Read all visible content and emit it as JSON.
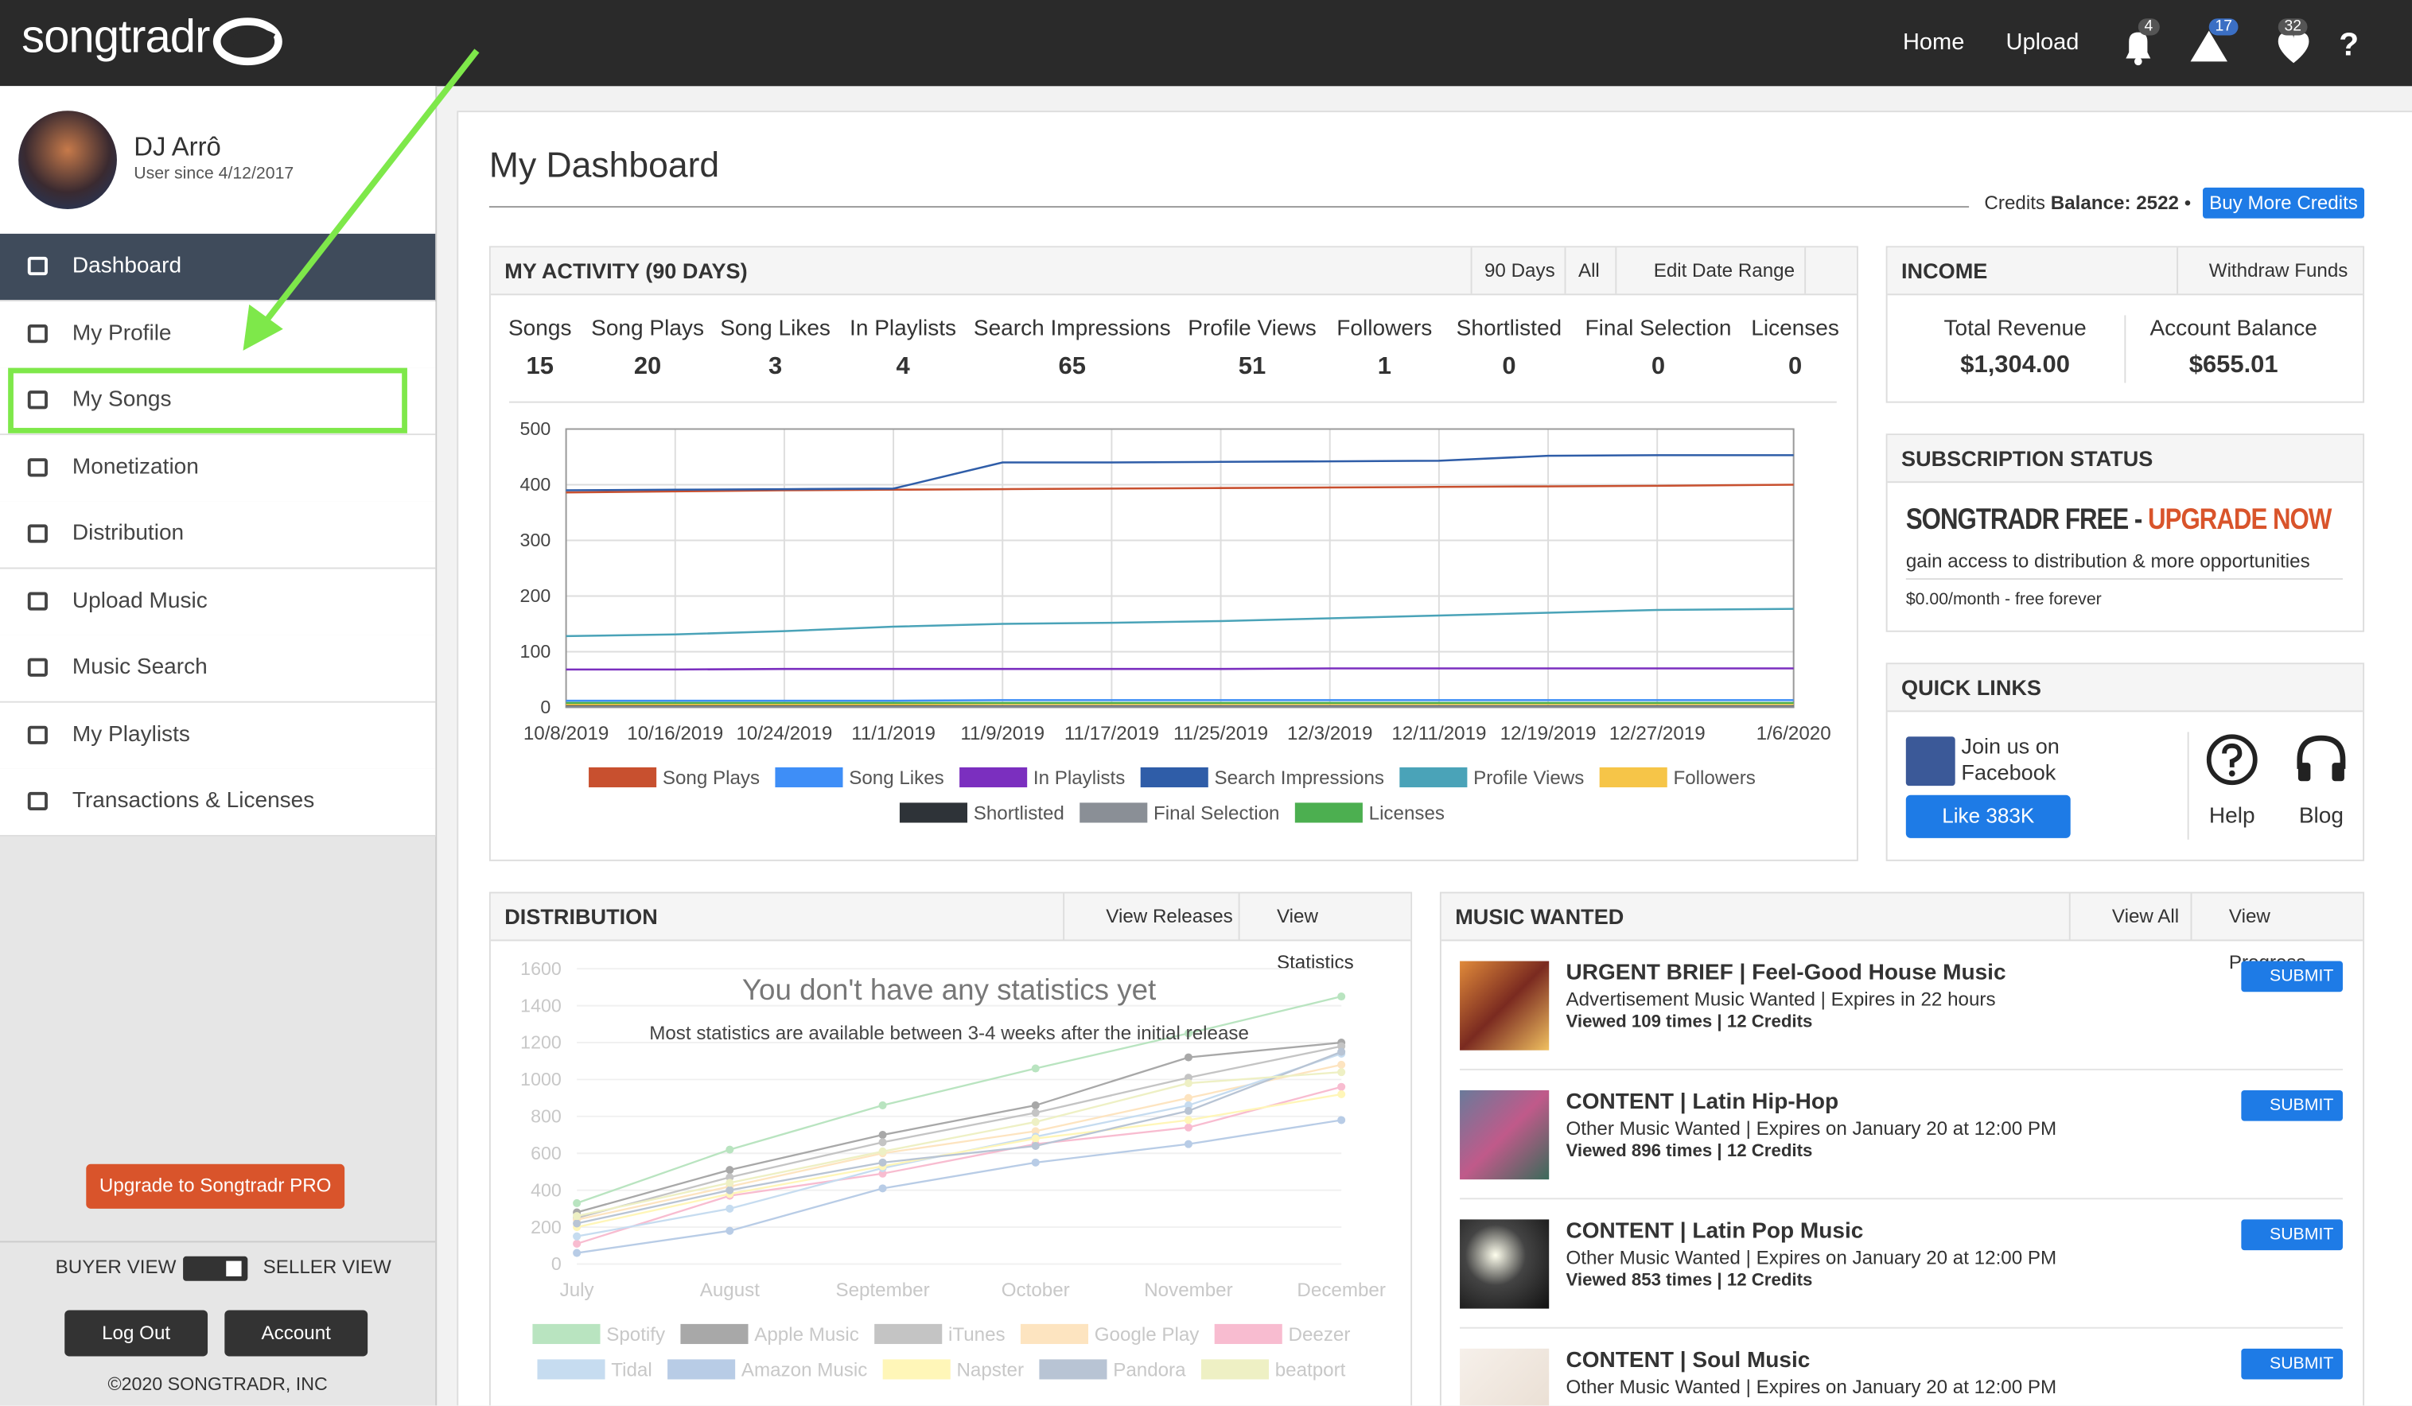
{
  "header": {
    "logo": "songtradr",
    "nav": [
      "Home",
      "Upload"
    ],
    "badges": [
      "4",
      "17",
      "32"
    ],
    "help": "?"
  },
  "sidebar": {
    "user_name": "DJ Arrô",
    "user_since": "User since 4/12/2017",
    "menu": [
      "Dashboard",
      "My Profile",
      "My Songs",
      "Monetization",
      "Distribution",
      "Upload Music",
      "Music Search",
      "My Playlists",
      "Transactions & Licenses"
    ],
    "upgrade": "Upgrade to Songtradr PRO",
    "buyer_view": "BUYER VIEW",
    "seller_view": "SELLER VIEW",
    "logout": "Log Out",
    "account": "Account",
    "copyright": "©2020 SONGTRADR, INC"
  },
  "page_title": "My Dashboard",
  "credits": {
    "label": "Credits",
    "balance": "Balance: 2522",
    "buy": "Buy More Credits"
  },
  "activity": {
    "title": "MY ACTIVITY (90 DAYS)",
    "buttons": [
      "90 Days",
      "All",
      "Edit Date Range"
    ],
    "stats": [
      {
        "label": "Songs",
        "value": 15
      },
      {
        "label": "Song Plays",
        "value": 20
      },
      {
        "label": "Song Likes",
        "value": 3
      },
      {
        "label": "In Playlists",
        "value": 4
      },
      {
        "label": "Search Impressions",
        "value": 65
      },
      {
        "label": "Profile Views",
        "value": 51
      },
      {
        "label": "Followers",
        "value": 1
      },
      {
        "label": "Shortlisted",
        "value": 0
      },
      {
        "label": "Final Selection",
        "value": 0
      },
      {
        "label": "Licenses",
        "value": 0
      }
    ],
    "chart_data": {
      "type": "line",
      "x": [
        "10/8/2019",
        "10/16/2019",
        "10/24/2019",
        "11/1/2019",
        "11/9/2019",
        "11/17/2019",
        "11/25/2019",
        "12/3/2019",
        "12/11/2019",
        "12/19/2019",
        "12/27/2019",
        "1/6/2020"
      ],
      "ylim": [
        0,
        500
      ],
      "yticks": [
        0,
        100,
        200,
        300,
        400,
        500
      ],
      "grid": true,
      "series": [
        {
          "name": "Song Plays",
          "color": "#c8502f",
          "values": [
            386,
            388,
            390,
            391,
            392,
            393,
            394,
            395,
            396,
            397,
            398,
            400
          ]
        },
        {
          "name": "Song Likes",
          "color": "#3e8ef7",
          "values": [
            12,
            12,
            12,
            12,
            13,
            13,
            13,
            13,
            13,
            13,
            13,
            13
          ]
        },
        {
          "name": "In Playlists",
          "color": "#7b2fbf",
          "values": [
            68,
            68,
            69,
            69,
            69,
            69,
            69,
            70,
            70,
            70,
            70,
            70
          ]
        },
        {
          "name": "Search Impressions",
          "color": "#2f5da8",
          "values": [
            390,
            391,
            392,
            393,
            440,
            440,
            441,
            442,
            443,
            452,
            453,
            453
          ]
        },
        {
          "name": "Profile Views",
          "color": "#4aa3b8",
          "values": [
            128,
            131,
            137,
            145,
            150,
            152,
            155,
            160,
            165,
            170,
            175,
            177
          ]
        },
        {
          "name": "Followers",
          "color": "#f6c548",
          "values": [
            5,
            5,
            5,
            5,
            6,
            6,
            6,
            6,
            6,
            6,
            6,
            6
          ]
        },
        {
          "name": "Shortlisted",
          "color": "#2e3338",
          "values": [
            2,
            2,
            2,
            2,
            2,
            2,
            2,
            2,
            2,
            2,
            2,
            2
          ]
        },
        {
          "name": "Final Selection",
          "color": "#8a8f96",
          "values": [
            1,
            1,
            1,
            1,
            1,
            1,
            1,
            1,
            1,
            1,
            1,
            1
          ]
        },
        {
          "name": "Licenses",
          "color": "#4caf50",
          "values": [
            8,
            8,
            8,
            8,
            8,
            8,
            8,
            8,
            8,
            8,
            8,
            8
          ]
        }
      ]
    }
  },
  "income": {
    "title": "INCOME",
    "withdraw": "Withdraw Funds",
    "total_label": "Total Revenue",
    "total": "$1,304.00",
    "balance_label": "Account Balance",
    "balance": "$655.01"
  },
  "subscription": {
    "title": "SUBSCRIPTION STATUS",
    "plan": "SONGTRADR FREE - ",
    "upgrade": "UPGRADE NOW",
    "description": "gain access to distribution & more opportunities",
    "price": "$0.00/month - free forever"
  },
  "quick_links": {
    "title": "QUICK LINKS",
    "facebook": "Join us on Facebook",
    "like": "Like 383K",
    "help": "Help",
    "blog": "Blog"
  },
  "distribution": {
    "title": "DISTRIBUTION",
    "buttons": [
      "View Releases",
      "View Statistics"
    ],
    "empty_title": "You don't have any statistics yet",
    "empty_note": "Most statistics are available between 3-4 weeks after the initial release",
    "chart_data": {
      "type": "line",
      "categories": [
        "July",
        "August",
        "September",
        "October",
        "November",
        "December"
      ],
      "ylim": [
        0,
        1600
      ],
      "yticks": [
        0,
        200,
        400,
        600,
        800,
        1000,
        1200,
        1400,
        1600
      ],
      "grid": true,
      "series": [
        {
          "name": "Spotify",
          "color": "#b9e4c0",
          "values": [
            330,
            620,
            860,
            1060,
            1250,
            1450
          ]
        },
        {
          "name": "Apple Music",
          "color": "#a8a8a8",
          "values": [
            280,
            510,
            700,
            860,
            1120,
            1200
          ]
        },
        {
          "name": "iTunes",
          "color": "#c4c4c4",
          "values": [
            250,
            470,
            660,
            820,
            1010,
            1180
          ]
        },
        {
          "name": "Google Play",
          "color": "#fde4c0",
          "values": [
            240,
            420,
            600,
            720,
            900,
            1080
          ]
        },
        {
          "name": "Deezer",
          "color": "#f8bcd0",
          "values": [
            110,
            370,
            490,
            650,
            740,
            960
          ]
        },
        {
          "name": "Tidal",
          "color": "#c6dcf0",
          "values": [
            150,
            300,
            520,
            690,
            860,
            1140
          ]
        },
        {
          "name": "Amazon Music",
          "color": "#b8cce6",
          "values": [
            60,
            180,
            410,
            550,
            650,
            780
          ]
        },
        {
          "name": "Napster",
          "color": "#fff6b8",
          "values": [
            200,
            380,
            530,
            680,
            780,
            920
          ]
        },
        {
          "name": "Pandora",
          "color": "#b8c4d4",
          "values": [
            220,
            400,
            550,
            640,
            830,
            1150
          ]
        },
        {
          "name": "beatport",
          "color": "#eef0c4",
          "values": [
            260,
            440,
            610,
            770,
            980,
            1040
          ]
        }
      ]
    }
  },
  "music_wanted": {
    "title": "MUSIC WANTED",
    "buttons": [
      "View All",
      "View Progress"
    ],
    "submit": "SUBMIT",
    "items": [
      {
        "title": "URGENT BRIEF | Feel-Good House Music",
        "subtitle": "Advertisement Music Wanted | Expires in 22 hours",
        "views": "Viewed 109 times | 12 Credits"
      },
      {
        "title": "CONTENT | Latin Hip-Hop",
        "subtitle": "Other Music Wanted | Expires on January 20 at 12:00 PM",
        "views": "Viewed 896 times | 12 Credits"
      },
      {
        "title": "CONTENT | Latin Pop Music",
        "subtitle": "Other Music Wanted | Expires on January 20 at 12:00 PM",
        "views": "Viewed 853 times | 12 Credits"
      },
      {
        "title": "CONTENT | Soul Music",
        "subtitle": "Other Music Wanted | Expires on January 20 at 12:00 PM"
      }
    ]
  }
}
